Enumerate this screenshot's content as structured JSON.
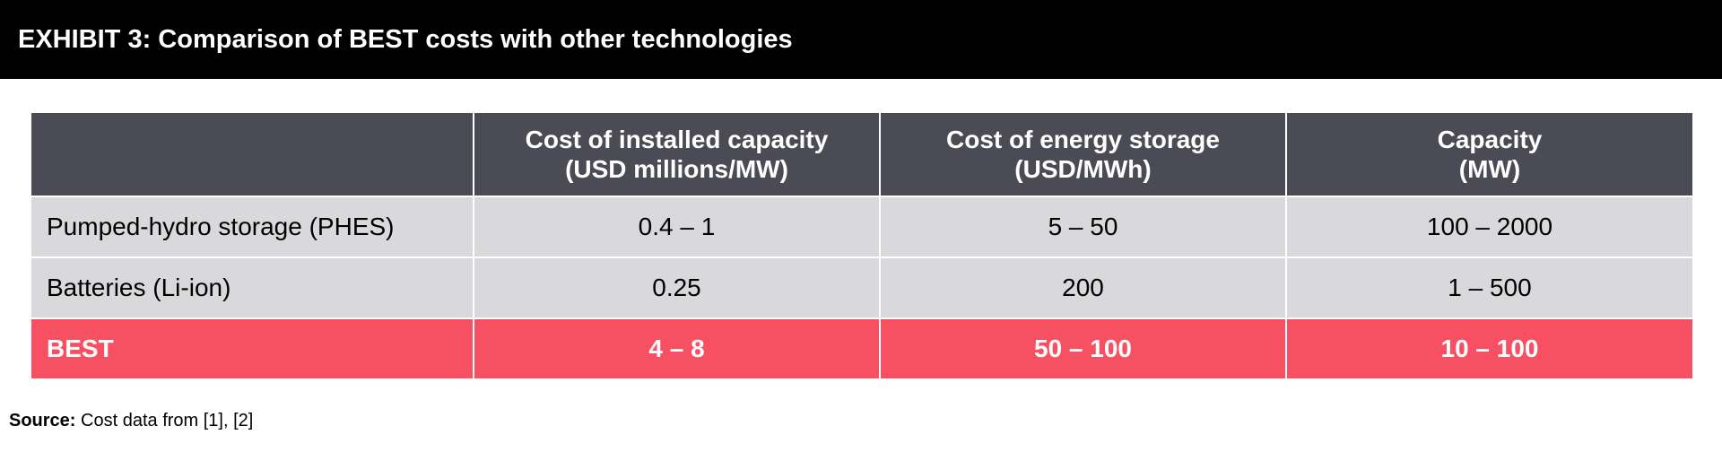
{
  "title": "EXHIBIT 3: Comparison of BEST costs with other technologies",
  "table": {
    "headers": [
      {
        "line1": "",
        "line2": ""
      },
      {
        "line1": "Cost of installed capacity",
        "line2": "(USD millions/MW)"
      },
      {
        "line1": "Cost of energy storage",
        "line2": "(USD/MWh)"
      },
      {
        "line1": "Capacity",
        "line2": "(MW)"
      }
    ],
    "rows": [
      {
        "label": "Pumped-hydro storage (PHES)",
        "installed": "0.4 – 1",
        "storage": "5 – 50",
        "capacity": "100 – 2000"
      },
      {
        "label": "Batteries (Li-ion)",
        "installed": "0.25",
        "storage": "200",
        "capacity": "1 – 500"
      },
      {
        "label": "BEST",
        "installed": "4 – 8",
        "storage": "50 – 100",
        "capacity": "10 – 100"
      }
    ]
  },
  "source": {
    "label": "Source:",
    "text": " Cost data from [1], [2]"
  },
  "colors": {
    "title_bg": "#000000",
    "header_bg": "#4b4b55",
    "row_bg": "#d9d9dc",
    "highlight_bg": "#f75063"
  }
}
